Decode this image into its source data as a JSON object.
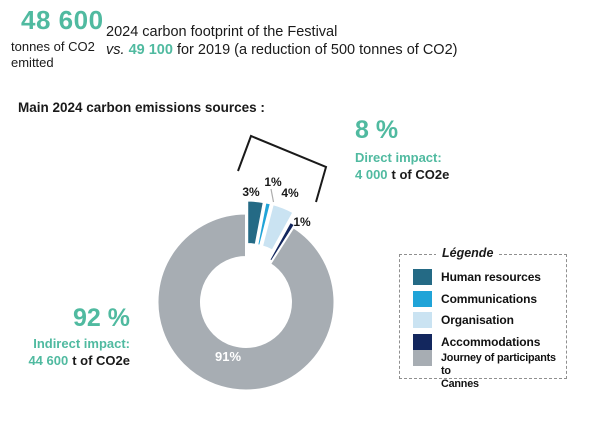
{
  "colors": {
    "accent_teal": "#50BAA0",
    "text_black": "#1a1a1a",
    "bracket": "#1a1a1a",
    "leader_gray": "#adadad"
  },
  "header": {
    "big_number": "48 600",
    "big_number_sub": "tonnes of CO2\nemitted",
    "line1": "2024 carbon footprint of the Festival",
    "line2_vs": "vs.",
    "line2_highlight": "49 100",
    "line2_rest": " for 2019 (a reduction of 500 tonnes of CO2)"
  },
  "section_title": "Main 2024 carbon emissions sources :",
  "callouts": {
    "direct": {
      "pct": "8 %",
      "label": "Direct impact:",
      "value": "4 000",
      "unit": "t of CO2e"
    },
    "indirect": {
      "pct": "92 %",
      "label": "Indirect impact:",
      "value": "44 600",
      "unit": "t of CO2e"
    }
  },
  "legend": {
    "title": "Légende",
    "items": [
      {
        "label": "Human resources"
      },
      {
        "label": "Communications"
      },
      {
        "label": "Organisation"
      },
      {
        "label": "Accommodations"
      },
      {
        "label": "Journey of participants to\nCannes"
      }
    ]
  },
  "chart_data": {
    "type": "pie",
    "subtype": "donut-exploded",
    "title": "Main 2024 carbon emissions sources",
    "categories": [
      "Human resources",
      "Communications",
      "Organisation",
      "Accommodations",
      "Journey of participants to Cannes"
    ],
    "values": [
      3,
      1,
      4,
      1,
      91
    ],
    "labels": [
      "3%",
      "1%",
      "4%",
      "1%",
      "91%"
    ],
    "colors": [
      "#246A85",
      "#20A4D8",
      "#CAE3F2",
      "#13275E",
      "#A7ADB3"
    ],
    "unit": "percent of total emissions",
    "legend_position": "right",
    "annotations": {
      "direct_impact_pct": 8,
      "direct_impact_t_co2e": 4000,
      "indirect_impact_pct": 92,
      "indirect_impact_t_co2e": 44600,
      "total_2024_t_co2": 48600,
      "total_2019_t_co2": 49100,
      "reduction_t_co2": 500
    }
  }
}
